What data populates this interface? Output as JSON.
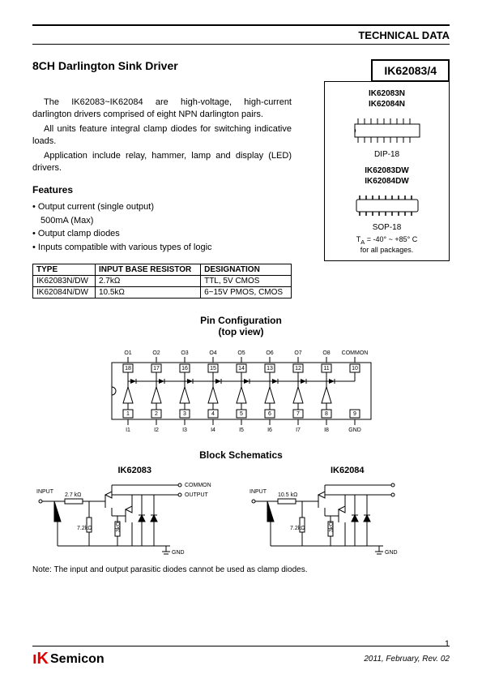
{
  "header": "TECHNICAL DATA",
  "title": "8CH Darlington Sink Driver",
  "part_number": "IK62083/4",
  "description": {
    "p1": "The IK62083~IK62084 are high-voltage, high-current darlington drivers comprised of eight NPN darlington pairs.",
    "p2": "All units feature integral clamp diodes for switching indicative loads.",
    "p3": "Application include relay, hammer, lamp and display (LED) drivers."
  },
  "features_heading": "Features",
  "features": {
    "f1": "• Output current (single output)",
    "f1b": "  500mA (Max)",
    "f2": "• Output clamp diodes",
    "f3": "• Inputs compatible with various types of logic"
  },
  "table": {
    "h1": "TYPE",
    "h2": "INPUT BASE RESISTOR",
    "h3": "DESIGNATION",
    "r1c1": "IK62083N/DW",
    "r1c2": "2.7kΩ",
    "r1c3": "TTL, 5V CMOS",
    "r2c1": "IK62084N/DW",
    "r2c2": "10.5kΩ",
    "r2c3": "6~15V PMOS, CMOS"
  },
  "right_box": {
    "pn1": "IK62083N",
    "pn2": "IK62084N",
    "pkg1": "DIP-18",
    "pn3": "IK62083DW",
    "pn4": "IK62084DW",
    "pkg2": "SOP-18",
    "temp": "T_A = -40° ~ +85° C",
    "pkgnote": "for all packages."
  },
  "pin_config_heading": "Pin Configuration",
  "pin_config_sub": "(top view)",
  "block_schematics_heading": "Block Schematics",
  "schematic1": "IK62083",
  "schematic2": "IK62084",
  "note": "Note:  The input and output parasitic diodes cannot be used as clamp diodes.",
  "page_num": "1",
  "footer_date": "2011, February, Rev. 02",
  "logo_text": "Semicon",
  "pin_labels": {
    "top": [
      "O1",
      "O2",
      "O3",
      "O4",
      "O5",
      "O6",
      "O7",
      "O8",
      "COMMON"
    ],
    "top_nums": [
      "18",
      "17",
      "16",
      "15",
      "14",
      "13",
      "12",
      "11",
      "10"
    ],
    "bot": [
      "I1",
      "I2",
      "I3",
      "I4",
      "I5",
      "I6",
      "I7",
      "I8",
      "GND"
    ],
    "bot_nums": [
      "1",
      "2",
      "3",
      "4",
      "5",
      "6",
      "7",
      "8",
      "9"
    ]
  },
  "sch": {
    "input": "INPUT",
    "common": "COMMON",
    "output": "OUTPUT",
    "gnd": "GND",
    "r1a": "2.7 kΩ",
    "r1b": "10.5 kΩ",
    "r2": "7.2kΩ",
    "r3": "3kΩ"
  },
  "colors": {
    "text": "#000000",
    "bg": "#ffffff",
    "accent": "#d00000"
  }
}
